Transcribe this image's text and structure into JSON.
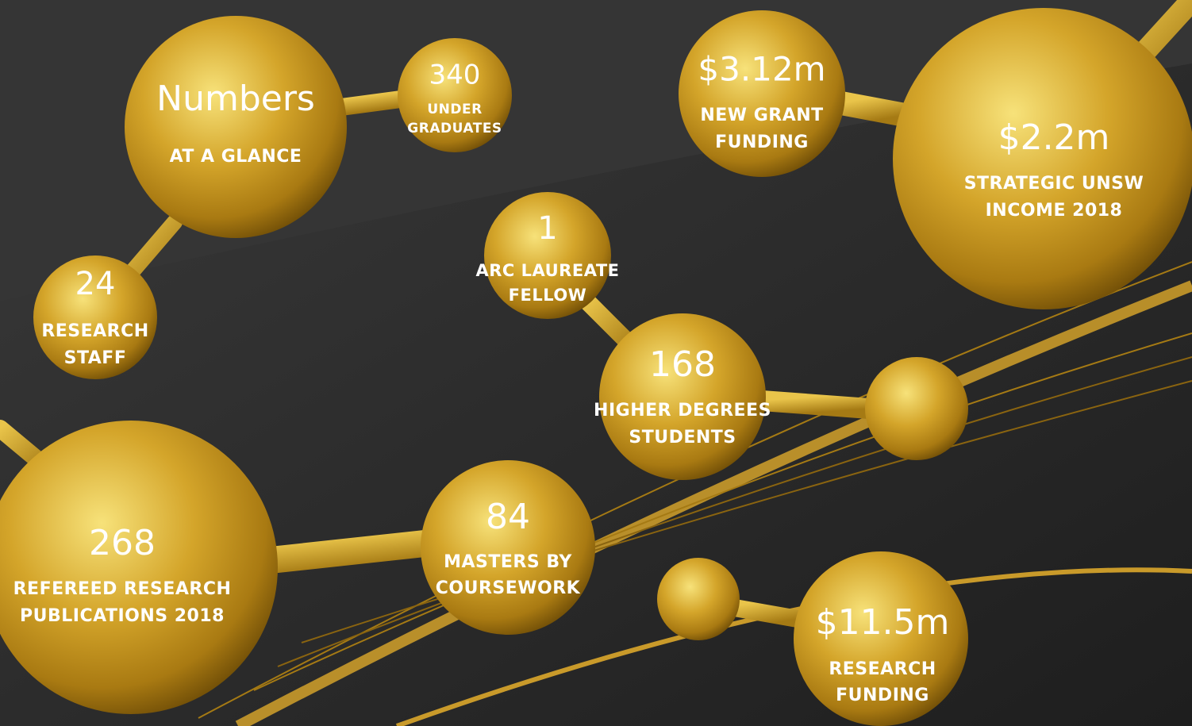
{
  "title": {
    "main": "Numbers",
    "sub": "AT A GLANCE"
  },
  "stats": [
    {
      "value": "340",
      "label": [
        "UNDER",
        "GRADUATES"
      ]
    },
    {
      "value": "24",
      "label": [
        "RESEARCH",
        "STAFF"
      ]
    },
    {
      "value": "$3.12m",
      "label": [
        "NEW GRANT",
        "FUNDING"
      ]
    },
    {
      "value": "$2.2m",
      "label": [
        "STRATEGIC UNSW",
        "INCOME 2018"
      ]
    },
    {
      "value": "1",
      "label": [
        "ARC LAUREATE",
        "FELLOW"
      ]
    },
    {
      "value": "168",
      "label": [
        "HIGHER DEGREES",
        "STUDENTS"
      ]
    },
    {
      "value": "268",
      "label": [
        "REFEREED RESEARCH",
        "PUBLICATIONS 2018"
      ]
    },
    {
      "value": "84",
      "label": [
        "MASTERS BY",
        "COURSEWORK"
      ]
    },
    {
      "value": "$11.5m",
      "label": [
        "RESEARCH",
        "FUNDING"
      ]
    }
  ]
}
